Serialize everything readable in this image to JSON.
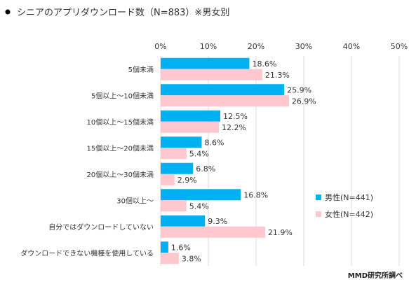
{
  "title": "シニアのアプリダウンロード数（N=883）※男女別",
  "credit": "MMD研究所調べ",
  "colors": {
    "male": "#00b0f0",
    "female": "#ffc7ce",
    "grid": "#d9d9d9",
    "bullet": "#000000"
  },
  "chart_data": {
    "type": "bar",
    "orientation": "horizontal",
    "title": "シニアのアプリダウンロード数（N=883）※男女別",
    "categories": [
      "5個未満",
      "5個以上～10個未満",
      "10個以上～15個未満",
      "15個以上～20個未満",
      "20個以上～30個未満",
      "30個以上～",
      "自分ではダウンロードしていない",
      "ダウンロードできない機種を使用している"
    ],
    "series": [
      {
        "name": "男性(N=441)",
        "color": "#00b0f0",
        "values": [
          18.6,
          25.9,
          12.5,
          8.6,
          6.8,
          16.8,
          9.3,
          1.6
        ]
      },
      {
        "name": "女性(N=442)",
        "color": "#ffc7ce",
        "values": [
          21.3,
          26.9,
          12.2,
          5.4,
          2.9,
          5.4,
          21.9,
          3.8
        ]
      }
    ],
    "x_ticks": [
      "0%",
      "10%",
      "20%",
      "30%",
      "40%",
      "50%"
    ],
    "xlim": [
      0,
      50
    ],
    "unit": "%",
    "grid": true,
    "legend_position": "right"
  }
}
